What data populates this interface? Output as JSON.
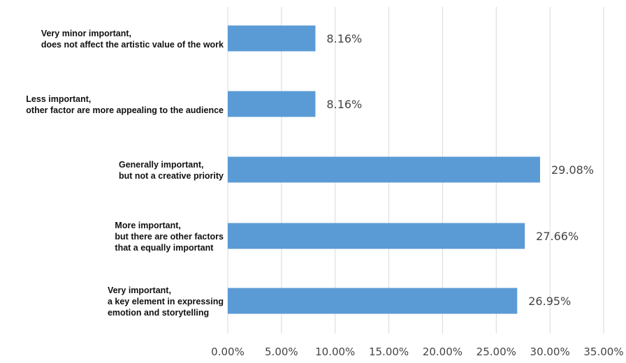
{
  "chart_data": {
    "type": "bar",
    "orientation": "horizontal",
    "categories": [
      [
        "Very minor important,",
        "does not affect the artistic value of the work"
      ],
      [
        "Less important,",
        "other factor are more appealing to the audience"
      ],
      [
        "Generally important,",
        "but not a creative priority"
      ],
      [
        "More important,",
        "but there are other factors",
        "that a equally important"
      ],
      [
        "Very important,",
        "a key element in expressing",
        "emotion and storytelling"
      ]
    ],
    "values": [
      8.16,
      8.16,
      29.08,
      27.66,
      26.95
    ],
    "value_labels": [
      "8.16%",
      "8.16%",
      "29.08%",
      "27.66%",
      "26.95%"
    ],
    "xlim": [
      0,
      35
    ],
    "x_ticks": [
      0,
      5,
      10,
      15,
      20,
      25,
      30,
      35
    ],
    "x_tick_labels": [
      "0.00%",
      "5.00%",
      "10.00%",
      "15.00%",
      "20.00%",
      "25.00%",
      "30.00%",
      "35.00%"
    ],
    "grid": true,
    "legend": "none",
    "bar_color": "#5b9bd5",
    "title": "",
    "xlabel": "",
    "ylabel": ""
  }
}
